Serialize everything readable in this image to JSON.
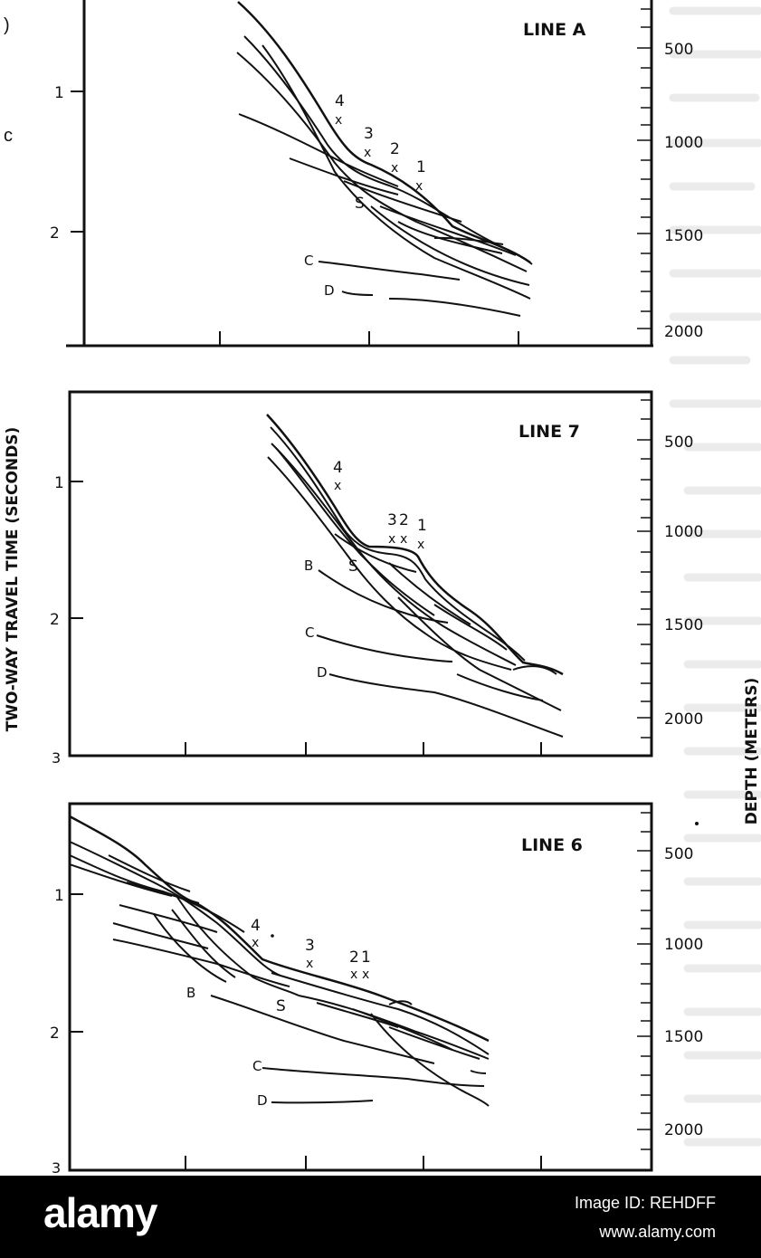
{
  "axes": {
    "left_label": "TWO-WAY TRAVEL TIME (SECONDS)",
    "right_label": "DEPTH (METERS)"
  },
  "panels": [
    {
      "title": "LINE A",
      "time_ticks": [
        "1",
        "2"
      ],
      "depth_ticks": [
        "500",
        "1000",
        "1500",
        "2000"
      ],
      "site_labels": [
        "4",
        "3",
        "2",
        "1"
      ],
      "horizon_labels": [
        "S",
        "C",
        "D"
      ]
    },
    {
      "title": "LINE 7",
      "time_ticks": [
        "1",
        "2",
        "3"
      ],
      "depth_ticks": [
        "500",
        "1000",
        "1500",
        "2000"
      ],
      "site_labels": [
        "4",
        "3",
        "2",
        "1"
      ],
      "horizon_labels": [
        "B",
        "S",
        "C",
        "D"
      ]
    },
    {
      "title": "LINE 6",
      "time_ticks": [
        "1",
        "2",
        "3"
      ],
      "depth_ticks": [
        "500",
        "1000",
        "1500",
        "2000"
      ],
      "site_labels": [
        "4",
        "3",
        "2",
        "1"
      ],
      "horizon_labels": [
        "B",
        "S",
        "C",
        "D"
      ]
    }
  ],
  "watermark": {
    "brand": "alamy",
    "image_id": "Image ID: REHDFF",
    "url": "www.alamy.com"
  }
}
